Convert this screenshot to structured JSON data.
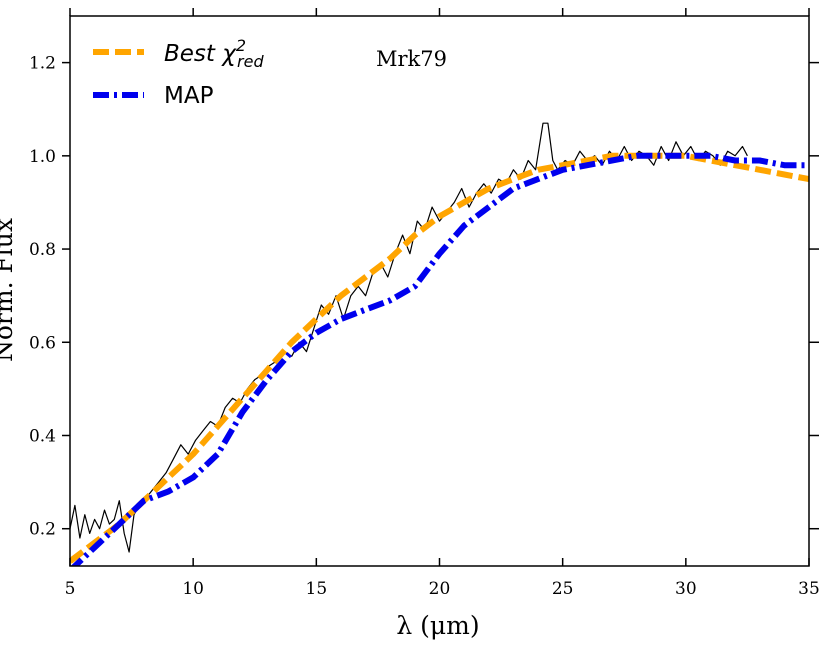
{
  "chart_data": {
    "type": "line",
    "annotation": "Mrk79",
    "xlabel": "λ (μm)",
    "ylabel": "Norm. Flux",
    "xlim": [
      5,
      35
    ],
    "ylim": [
      0.12,
      1.3
    ],
    "xticks": [
      5,
      10,
      15,
      20,
      25,
      30,
      35
    ],
    "xtick_labels": [
      "5",
      "10",
      "15",
      "20",
      "25",
      "30",
      "35"
    ],
    "yticks": [
      0.2,
      0.4,
      0.6,
      0.8,
      1.0,
      1.2
    ],
    "ytick_labels": [
      "0.2",
      "0.4",
      "0.6",
      "0.8",
      "1.0",
      "1.2"
    ],
    "grid": false,
    "legend_position": "top-left",
    "series": [
      {
        "key": "observed",
        "color": "#000000",
        "style": "solid",
        "x": [
          5.0,
          5.2,
          5.4,
          5.6,
          5.8,
          6.0,
          6.2,
          6.4,
          6.6,
          6.8,
          7.0,
          7.2,
          7.4,
          7.6,
          7.8,
          8.0,
          8.3,
          8.6,
          8.9,
          9.2,
          9.5,
          9.8,
          10.1,
          10.4,
          10.7,
          11.0,
          11.3,
          11.6,
          11.9,
          12.2,
          12.5,
          12.8,
          13.1,
          13.4,
          13.7,
          14.0,
          14.3,
          14.6,
          14.9,
          15.2,
          15.5,
          15.8,
          16.1,
          16.4,
          16.7,
          17.0,
          17.3,
          17.6,
          17.9,
          18.2,
          18.5,
          18.8,
          19.1,
          19.4,
          19.7,
          20.0,
          20.3,
          20.6,
          20.9,
          21.2,
          21.5,
          21.8,
          22.1,
          22.4,
          22.7,
          23.0,
          23.3,
          23.6,
          23.9,
          24.2,
          24.4,
          24.6,
          24.8,
          25.1,
          25.4,
          25.7,
          26.0,
          26.3,
          26.6,
          26.9,
          27.2,
          27.5,
          27.8,
          28.1,
          28.4,
          28.7,
          29.0,
          29.3,
          29.6,
          29.9,
          30.2,
          30.5,
          30.8,
          31.1,
          31.4,
          31.7,
          32.0,
          32.3,
          32.5
        ],
        "y": [
          0.2,
          0.25,
          0.18,
          0.23,
          0.19,
          0.22,
          0.2,
          0.24,
          0.21,
          0.22,
          0.26,
          0.19,
          0.15,
          0.23,
          0.25,
          0.26,
          0.28,
          0.3,
          0.32,
          0.35,
          0.38,
          0.36,
          0.39,
          0.41,
          0.43,
          0.42,
          0.46,
          0.48,
          0.47,
          0.5,
          0.52,
          0.53,
          0.55,
          0.56,
          0.58,
          0.57,
          0.6,
          0.58,
          0.63,
          0.68,
          0.66,
          0.7,
          0.65,
          0.7,
          0.72,
          0.7,
          0.75,
          0.77,
          0.74,
          0.79,
          0.83,
          0.79,
          0.86,
          0.84,
          0.89,
          0.86,
          0.88,
          0.9,
          0.93,
          0.89,
          0.92,
          0.94,
          0.92,
          0.95,
          0.94,
          0.97,
          0.95,
          0.99,
          0.97,
          1.07,
          1.07,
          0.99,
          0.97,
          0.99,
          0.98,
          1.01,
          0.99,
          1.0,
          0.98,
          1.01,
          0.99,
          1.02,
          0.99,
          1.01,
          1.0,
          0.98,
          1.02,
          0.99,
          1.03,
          1.0,
          1.02,
          0.99,
          1.01,
          1.0,
          0.98,
          1.01,
          1.0,
          1.02,
          1.0
        ]
      },
      {
        "key": "best",
        "color": "#FFA500",
        "style": "dashed",
        "x": [
          5,
          6,
          7,
          8,
          9,
          10,
          11,
          12,
          13,
          14,
          15,
          16,
          17,
          18,
          19,
          20,
          21,
          22,
          23,
          24,
          25,
          26,
          27,
          28,
          29,
          30,
          31,
          32,
          33,
          34,
          35
        ],
        "y": [
          0.13,
          0.17,
          0.21,
          0.26,
          0.31,
          0.36,
          0.42,
          0.48,
          0.54,
          0.6,
          0.65,
          0.7,
          0.74,
          0.78,
          0.83,
          0.87,
          0.9,
          0.93,
          0.95,
          0.97,
          0.98,
          0.99,
          1.0,
          1.0,
          1.0,
          1.0,
          0.99,
          0.98,
          0.97,
          0.96,
          0.95
        ]
      },
      {
        "key": "map",
        "color": "#0000EE",
        "style": "dashdot",
        "x": [
          5,
          6,
          7,
          8,
          9,
          10,
          11,
          12,
          13,
          14,
          15,
          16,
          17,
          18,
          19,
          20,
          21,
          22,
          23,
          24,
          25,
          26,
          27,
          28,
          29,
          30,
          31,
          32,
          33,
          34,
          35
        ],
        "y": [
          0.11,
          0.16,
          0.21,
          0.26,
          0.28,
          0.31,
          0.36,
          0.45,
          0.52,
          0.58,
          0.62,
          0.65,
          0.67,
          0.69,
          0.72,
          0.79,
          0.85,
          0.89,
          0.93,
          0.95,
          0.97,
          0.98,
          0.99,
          1.0,
          1.0,
          1.0,
          1.0,
          0.99,
          0.99,
          0.98,
          0.98
        ]
      }
    ]
  },
  "legend": {
    "best_label": "Best χ",
    "best_sup": "2",
    "best_sub": "red",
    "map_label": "MAP"
  }
}
